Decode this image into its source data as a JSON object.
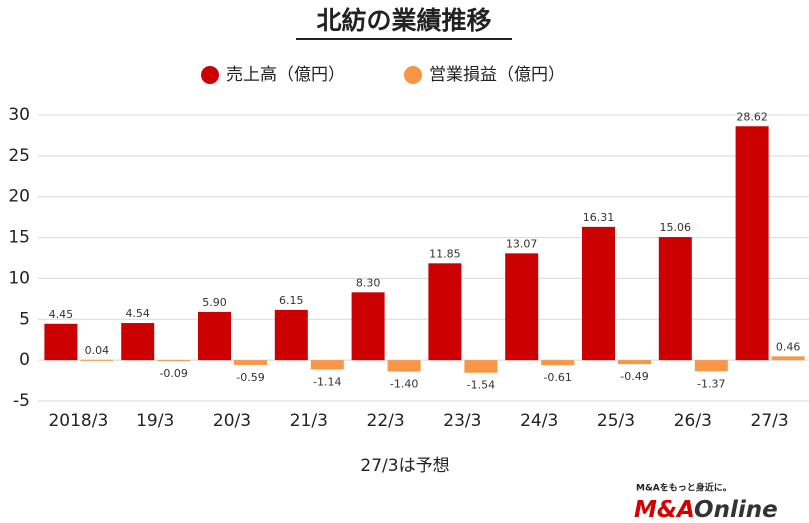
{
  "chart_data": {
    "type": "bar",
    "title": "北紡の業績推移",
    "categories": [
      "2018/3",
      "19/3",
      "20/3",
      "21/3",
      "22/3",
      "23/3",
      "24/3",
      "25/3",
      "26/3",
      "27/3"
    ],
    "series": [
      {
        "name": "売上高（億円）",
        "color": "#cc0000",
        "values": [
          4.45,
          4.54,
          5.9,
          6.15,
          8.3,
          11.85,
          13.07,
          16.31,
          15.06,
          28.62
        ],
        "value_labels": [
          "4.45",
          "4.54",
          "5.90",
          "6.15",
          "8.30",
          "11.85",
          "13.07",
          "16.31",
          "15.06",
          "28.62"
        ]
      },
      {
        "name": "営業損益（億円）",
        "color": "#f79646",
        "values": [
          0.04,
          -0.09,
          -0.59,
          -1.14,
          -1.4,
          -1.54,
          -0.61,
          -0.49,
          -1.37,
          0.46
        ],
        "value_labels": [
          "0.04",
          "-0.09",
          "-0.59",
          "-1.14",
          "-1.40",
          "-1.54",
          "-0.61",
          "-0.49",
          "-1.37",
          "0.46"
        ]
      }
    ],
    "ylim": [
      -5,
      30
    ],
    "yticks": [
      -5,
      0,
      5,
      10,
      15,
      20,
      25,
      30
    ],
    "grid": true,
    "footnote": "27/3は予想"
  },
  "logo": {
    "tagline": "M&Aをもっと身近に。",
    "brand_a": "M&A",
    "brand_b": "Online"
  }
}
